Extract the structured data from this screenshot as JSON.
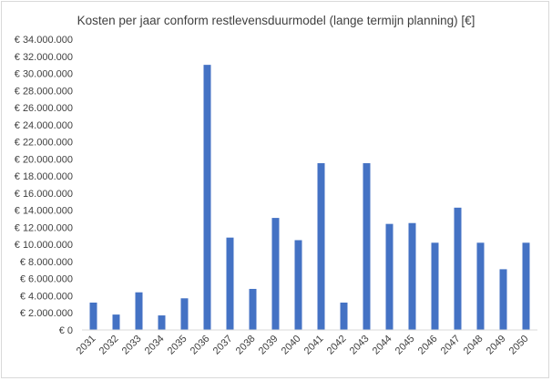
{
  "chart_data": {
    "type": "bar",
    "title": "Kosten per jaar conform restlevensduurmodel (lange termijn planning) [€]",
    "xlabel": "",
    "ylabel": "",
    "ylim": [
      0,
      34000000
    ],
    "ytick_step": 2000000,
    "ytick_labels": [
      "€ 0",
      "€ 2.000.000",
      "€ 4.000.000",
      "€ 6.000.000",
      "€ 8.000.000",
      "€ 10.000.000",
      "€ 12.000.000",
      "€ 14.000.000",
      "€ 16.000.000",
      "€ 18.000.000",
      "€ 20.000.000",
      "€ 22.000.000",
      "€ 24.000.000",
      "€ 26.000.000",
      "€ 28.000.000",
      "€ 30.000.000",
      "€ 32.000.000",
      "€ 34.000.000"
    ],
    "categories": [
      "2031",
      "2032",
      "2033",
      "2034",
      "2035",
      "2036",
      "2037",
      "2038",
      "2039",
      "2040",
      "2041",
      "2042",
      "2043",
      "2044",
      "2045",
      "2046",
      "2047",
      "2048",
      "2049",
      "2050"
    ],
    "values": [
      3200000,
      1800000,
      4400000,
      1700000,
      3700000,
      31000000,
      10800000,
      4800000,
      13100000,
      10500000,
      19500000,
      3200000,
      19500000,
      12400000,
      12500000,
      10200000,
      14300000,
      10200000,
      7100000,
      10200000
    ],
    "bar_color": "#4472c4",
    "grid": false,
    "legend": "none"
  }
}
